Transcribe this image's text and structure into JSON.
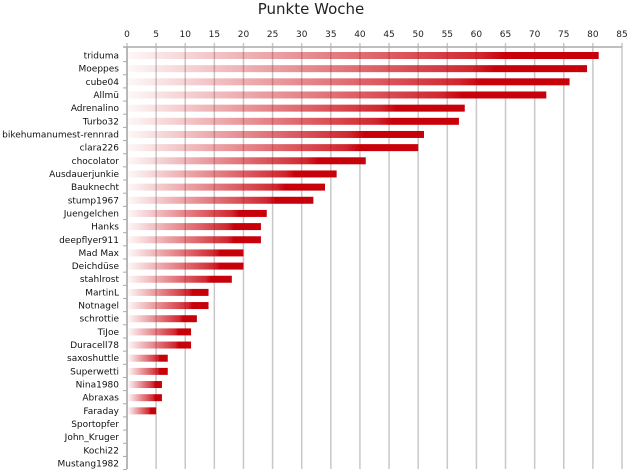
{
  "chart_data": {
    "type": "bar",
    "orientation": "horizontal",
    "title": "Punkte Woche",
    "xlabel": "",
    "ylabel": "",
    "xlim": [
      0,
      85
    ],
    "xticks": [
      0,
      5,
      10,
      15,
      20,
      25,
      30,
      35,
      40,
      45,
      50,
      55,
      60,
      65,
      70,
      75,
      80,
      85
    ],
    "grid": true,
    "legend": "none",
    "bar_color": "#c8000a",
    "categories": [
      "triduma",
      "Moeppes",
      "cube04",
      "Allmü",
      "Adrenalino",
      "Turbo32",
      "bikehumanumest-rennrad",
      "clara226",
      "chocolator",
      "Ausdauerjunkie",
      "Bauknecht",
      "stump1967",
      "Juengelchen",
      "Hanks",
      "deepflyer911",
      "Mad Max",
      "Deichdüse",
      "stahlrost",
      "MartinL",
      "Notnagel",
      "schrottie",
      "TiJoe",
      "Duracell78",
      "saxoshuttle",
      "Superwetti",
      "Nina1980",
      "Abraxas",
      "Faraday",
      "Sportopfer",
      "John_Kruger",
      "Kochi22",
      "Mustang1982"
    ],
    "values": [
      81,
      79,
      76,
      72,
      58,
      57,
      51,
      50,
      41,
      36,
      34,
      32,
      24,
      23,
      23,
      20,
      20,
      18,
      14,
      14,
      12,
      11,
      11,
      7,
      7,
      6,
      6,
      5,
      0,
      0,
      0,
      0
    ]
  }
}
